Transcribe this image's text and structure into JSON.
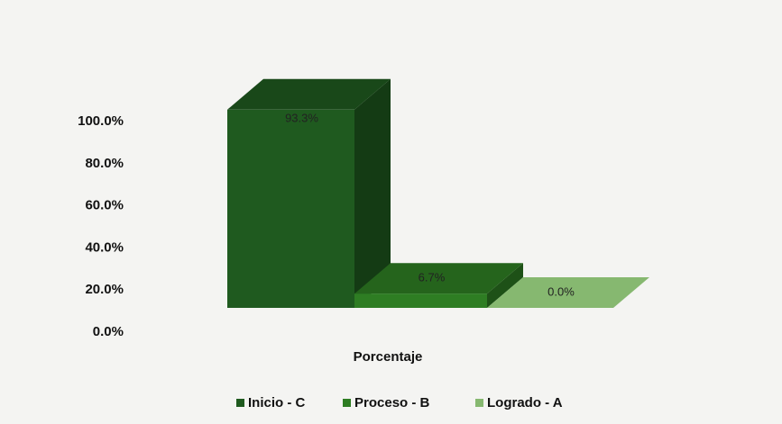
{
  "chart_data": {
    "type": "bar3d",
    "categories": [
      "Porcentaje"
    ],
    "series": [
      {
        "name": "Inicio - C",
        "color": "#1f5a1f",
        "values": [
          93.3
        ],
        "value_labels": [
          "93.3%"
        ]
      },
      {
        "name": "Proceso - B",
        "color": "#2e7d23",
        "values": [
          6.7
        ],
        "value_labels": [
          "6.7%"
        ]
      },
      {
        "name": "Logrado - A",
        "color": "#86b870",
        "values": [
          0.0
        ],
        "value_labels": [
          "0.0%"
        ]
      }
    ],
    "ylim": [
      0,
      100
    ],
    "yticks": [
      {
        "value": 0,
        "label": "0.0%"
      },
      {
        "value": 20,
        "label": "20.0%"
      },
      {
        "value": 40,
        "label": "40.0%"
      },
      {
        "value": 60,
        "label": "60.0%"
      },
      {
        "value": 80,
        "label": "80.0%"
      },
      {
        "value": 100,
        "label": "100.0%"
      }
    ],
    "legend": "bottom"
  }
}
